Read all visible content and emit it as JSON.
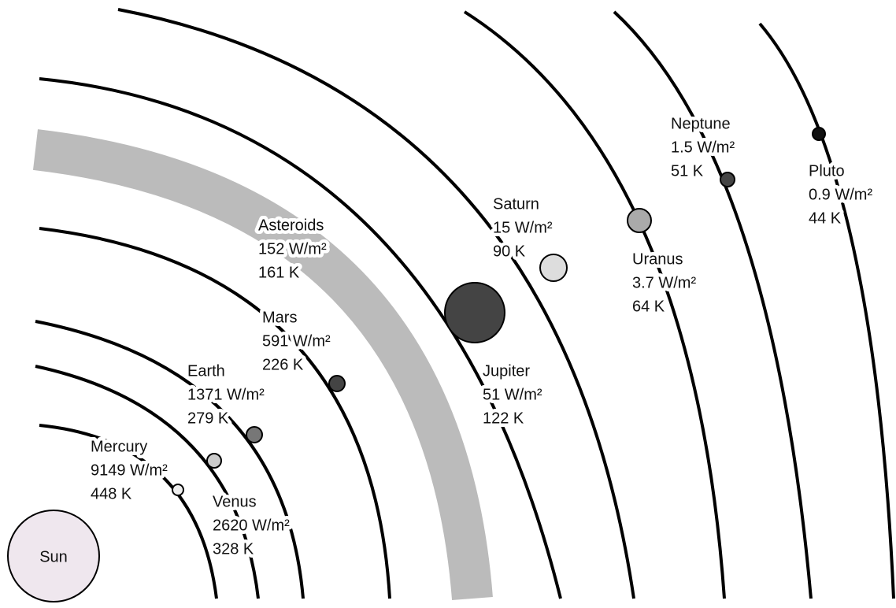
{
  "sun": {
    "label": "Sun"
  },
  "bodies": [
    {
      "name": "Mercury",
      "flux": "9149 W/m²",
      "temperature": "448 K"
    },
    {
      "name": "Venus",
      "flux": "2620 W/m²",
      "temperature": "328 K"
    },
    {
      "name": "Earth",
      "flux": "1371 W/m²",
      "temperature": "279 K"
    },
    {
      "name": "Mars",
      "flux": "591 W/m²",
      "temperature": "226 K"
    },
    {
      "name": "Asteroids",
      "flux": "152 W/m²",
      "temperature": "161 K"
    },
    {
      "name": "Jupiter",
      "flux": "51 W/m²",
      "temperature": "122 K"
    },
    {
      "name": "Saturn",
      "flux": "15 W/m²",
      "temperature": "90 K"
    },
    {
      "name": "Uranus",
      "flux": "3.7 W/m²",
      "temperature": "64 K"
    },
    {
      "name": "Neptune",
      "flux": "1.5 W/m²",
      "temperature": "51 K"
    },
    {
      "name": "Pluto",
      "flux": "0.9 W/m²",
      "temperature": "44 K"
    }
  ]
}
